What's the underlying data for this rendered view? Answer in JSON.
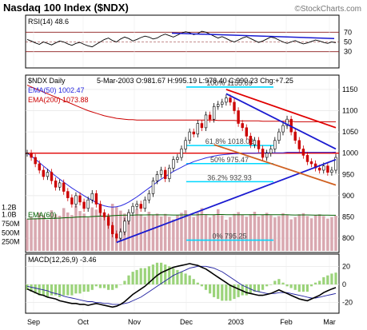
{
  "title": "Nasdaq 100 Index ($NDX)",
  "watermark": "©StockCharts.com",
  "colors": {
    "price": "#000000",
    "ema50": "#2a2ae0",
    "ema200": "#cc0000",
    "trend_blue": "#1a1ad0",
    "trend_red": "#e00000",
    "fib": "#00d8ff",
    "volume": "#d9a8b0",
    "macd_hist": "#9bd37a",
    "rsi_band": "#8b1a1a",
    "support": "#00b000"
  },
  "chart_data": [
    {
      "type": "line",
      "panel": "RSI",
      "label": "RSI(14) 48.6",
      "ylim": [
        0,
        100
      ],
      "ticks": [
        70,
        50,
        30
      ],
      "values": [
        55,
        52,
        48,
        45,
        50,
        47,
        44,
        48,
        52,
        50,
        46,
        43,
        47,
        49,
        45,
        42,
        40,
        45,
        50,
        55,
        58,
        53,
        50,
        56,
        60,
        57,
        52,
        55,
        59,
        62,
        60,
        56,
        58,
        63,
        66,
        63,
        60,
        64,
        68,
        71,
        69,
        65,
        67,
        72,
        70,
        66,
        62,
        58,
        61,
        57,
        53,
        50,
        54,
        58,
        61,
        57,
        53,
        49,
        52,
        56,
        60,
        58,
        54,
        50,
        47,
        50,
        53,
        49,
        46,
        48,
        51,
        54,
        52,
        49,
        47,
        50,
        48.6
      ]
    },
    {
      "type": "line",
      "panel": "price",
      "label": "$NDX Daily",
      "quote": "5-Mar-2003 O:981.67 H:995.19 L:978.40 C:990.23 Chg:+7.25",
      "ylim": [
        770,
        1180
      ],
      "yticks": [
        1150,
        1100,
        1050,
        1000,
        950,
        900,
        850,
        800
      ],
      "xticks": [
        "Sep",
        "Oct",
        "Nov",
        "Dec",
        "2003",
        "Feb",
        "Mar"
      ],
      "series": [
        {
          "name": "EMA(50) 1002.47",
          "values": [
            1000,
            993,
            986,
            978,
            970,
            962,
            954,
            946,
            939,
            932,
            925,
            918,
            912,
            906,
            900,
            894,
            889,
            884,
            879,
            876,
            874,
            873,
            874,
            876,
            880,
            885,
            891,
            897,
            904,
            911,
            918,
            925,
            932,
            939,
            945,
            951,
            957,
            962,
            967,
            972,
            976,
            980,
            983,
            986,
            989,
            991,
            993,
            995,
            996,
            997,
            998,
            999,
            999,
            1000,
            1000,
            1000,
            1000,
            1001,
            1001,
            1001,
            1001,
            1001,
            1001,
            1001,
            1002,
            1002,
            1002,
            1002,
            1002,
            1002,
            1002,
            1002,
            1002,
            1002,
            1002,
            1002,
            1002.47
          ]
        },
        {
          "name": "EMA(200) 1073.88",
          "values": [
            1160,
            1156,
            1152,
            1148,
            1144,
            1140,
            1136,
            1132,
            1128,
            1124,
            1120,
            1116,
            1112,
            1108,
            1104,
            1100,
            1097,
            1094,
            1091,
            1088,
            1086,
            1084,
            1082,
            1081,
            1080,
            1079,
            1079,
            1078,
            1078,
            1078,
            1078,
            1078,
            1078,
            1078,
            1078,
            1078,
            1078,
            1078,
            1078,
            1078,
            1078,
            1078,
            1078,
            1078,
            1078,
            1078,
            1078,
            1077,
            1077,
            1077,
            1077,
            1077,
            1076,
            1076,
            1076,
            1076,
            1076,
            1076,
            1075,
            1075,
            1075,
            1075,
            1075,
            1075,
            1075,
            1075,
            1074,
            1074,
            1074,
            1074,
            1074,
            1074,
            1074,
            1074,
            1074,
            1074,
            1073.88
          ]
        },
        {
          "name": "Close",
          "values": [
            1000,
            990,
            975,
            960,
            945,
            955,
            935,
            920,
            930,
            910,
            895,
            880,
            900,
            885,
            870,
            890,
            905,
            880,
            860,
            850,
            830,
            810,
            800,
            815,
            840,
            860,
            875,
            880,
            870,
            890,
            905,
            935,
            950,
            960,
            940,
            965,
            985,
            990,
            1010,
            1030,
            1050,
            1045,
            1070,
            1060,
            1090,
            1080,
            1110,
            1115,
            1120,
            1130,
            1120,
            1100,
            1070,
            1060,
            1040,
            1020,
            1030,
            1010,
            990,
            1000,
            1010,
            1030,
            1050,
            1065,
            1080,
            1050,
            1030,
            1010,
            995,
            980,
            975,
            965,
            960,
            970,
            955,
            960,
            990
          ]
        }
      ],
      "fibonacci": [
        {
          "label": "0% 795.25",
          "value": 795.25
        },
        {
          "label": "36.2% 932.93",
          "value": 932.93
        },
        {
          "label": "50% 975.47",
          "value": 975.47
        },
        {
          "label": "61.8% 1018.02",
          "value": 1018.02
        },
        {
          "label": "100% 1155.69",
          "value": 1155.69
        }
      ],
      "horizontal_support": 1000
    },
    {
      "type": "bar",
      "panel": "volume",
      "label": "EMA(60)",
      "yticks": [
        "1.2B",
        "1.0B",
        "750M",
        "500M",
        "250M"
      ],
      "values": [
        880,
        940,
        900,
        1050,
        980,
        860,
        1120,
        1010,
        970,
        1180,
        1060,
        990,
        1250,
        1100,
        1030,
        920,
        1200,
        1140,
        1080,
        970,
        1010,
        1300,
        1210,
        1110,
        1030,
        1070,
        960,
        1150,
        1010,
        940,
        1080,
        990,
        1030,
        950,
        1020,
        940,
        870,
        990,
        1050,
        1120,
        980,
        930,
        1050,
        1180,
        1010,
        920,
        1000,
        1150,
        980,
        860,
        930,
        1020,
        1070,
        990,
        940,
        1010,
        1080,
        950,
        1000,
        1050,
        980,
        920,
        960,
        1040,
        990,
        870,
        930,
        1010,
        1040,
        960,
        900,
        980,
        1010,
        960,
        890,
        930,
        970
      ]
    },
    {
      "type": "line",
      "panel": "MACD",
      "label": "MACD(12,26,9) -3.46",
      "ylim": [
        -30,
        30
      ],
      "yticks": [
        20,
        0,
        -20
      ],
      "series": [
        {
          "name": "MACD",
          "values": [
            -5,
            -7,
            -9,
            -11,
            -12,
            -14,
            -15,
            -16,
            -18,
            -19,
            -20,
            -21,
            -21,
            -22,
            -22,
            -23,
            -22,
            -21,
            -22,
            -23,
            -24,
            -25,
            -24,
            -22,
            -19,
            -15,
            -11,
            -8,
            -5,
            -2,
            2,
            6,
            10,
            13,
            15,
            17,
            19,
            20,
            21,
            22,
            23,
            22,
            21,
            19,
            17,
            14,
            11,
            8,
            5,
            2,
            -1,
            -3,
            -5,
            -7,
            -9,
            -10,
            -11,
            -12,
            -12,
            -11,
            -10,
            -8,
            -6,
            -8,
            -10,
            -12,
            -14,
            -16,
            -17,
            -18,
            -16,
            -14,
            -12,
            -9,
            -7,
            -5,
            -3.46
          ]
        },
        {
          "name": "Signal",
          "values": [
            -2,
            -3,
            -4,
            -5,
            -6,
            -7,
            -9,
            -10,
            -11,
            -13,
            -14,
            -15,
            -16,
            -17,
            -18,
            -19,
            -19,
            -20,
            -20,
            -21,
            -21,
            -22,
            -22,
            -22,
            -21,
            -20,
            -18,
            -16,
            -14,
            -11,
            -8,
            -5,
            -2,
            1,
            4,
            7,
            10,
            12,
            14,
            16,
            18,
            19,
            20,
            20,
            20,
            19,
            18,
            16,
            14,
            11,
            8,
            5,
            2,
            -1,
            -3,
            -5,
            -7,
            -8,
            -9,
            -10,
            -10,
            -10,
            -9,
            -9,
            -9,
            -10,
            -11,
            -12,
            -13,
            -14,
            -15,
            -15,
            -14,
            -13,
            -12,
            -11,
            -10
          ]
        }
      ]
    }
  ]
}
